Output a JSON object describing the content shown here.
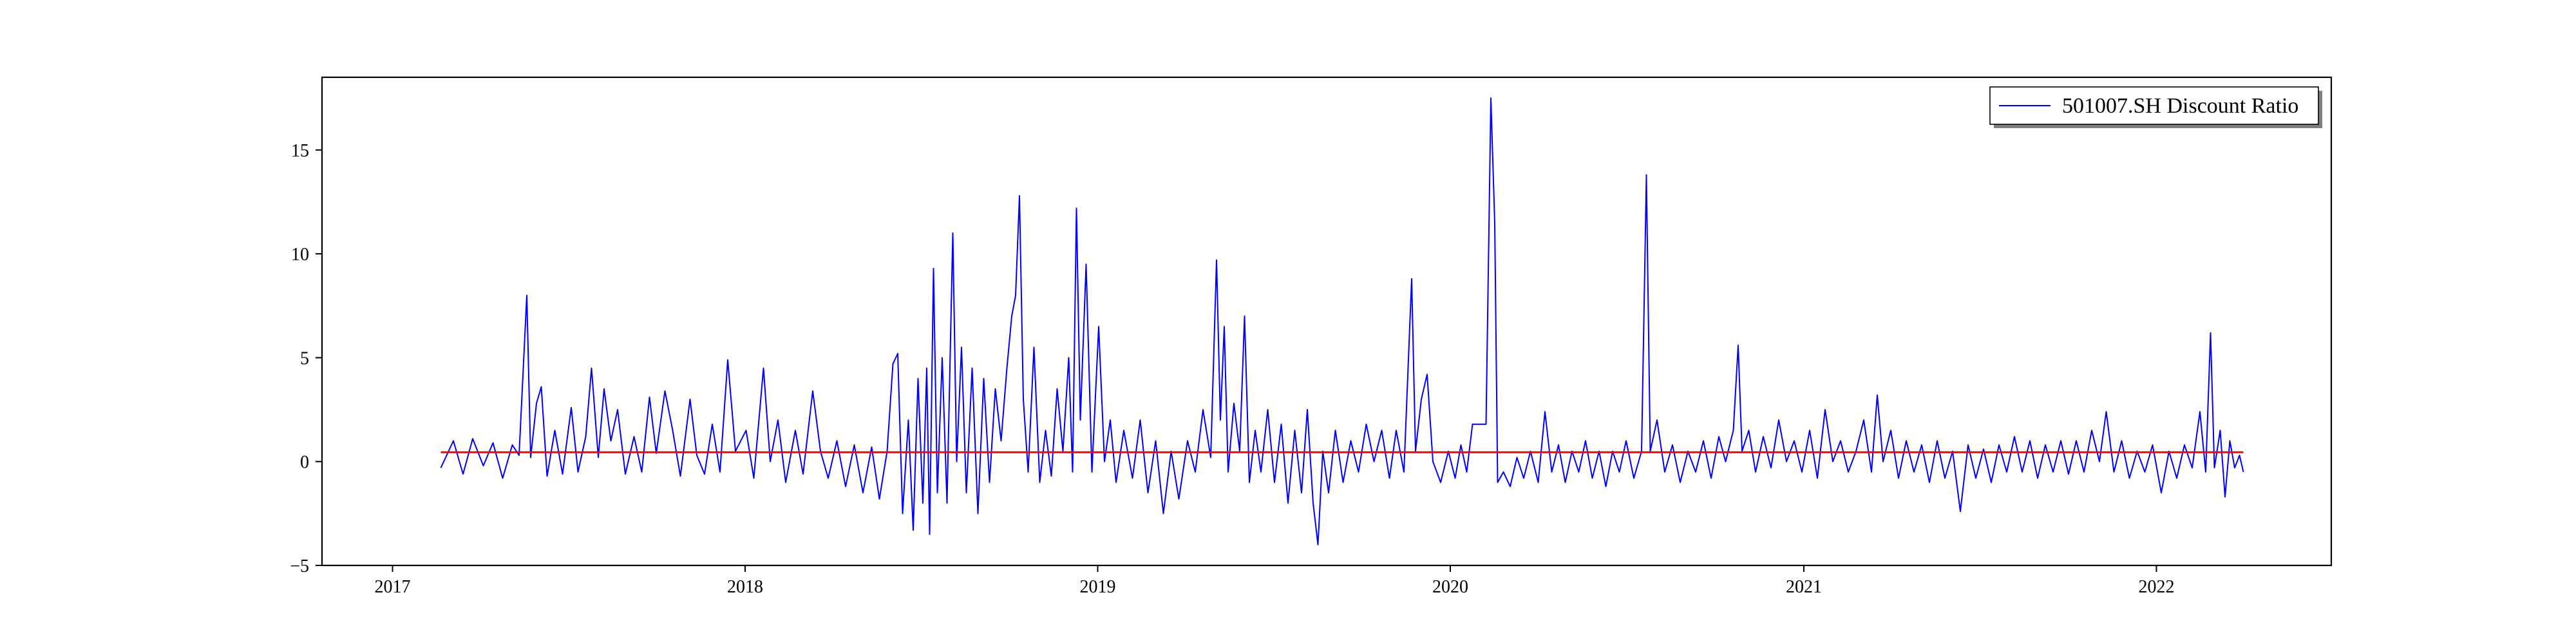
{
  "chart_data": {
    "type": "line",
    "title": "",
    "xlabel": "",
    "ylabel": "",
    "x_axis": {
      "type": "date",
      "range": [
        "2016-10-20",
        "2022-07-01"
      ],
      "ticks": [
        "2017-01-01",
        "2018-01-01",
        "2019-01-01",
        "2020-01-01",
        "2021-01-01",
        "2022-01-01"
      ],
      "tick_labels": [
        "2017",
        "2018",
        "2019",
        "2020",
        "2021",
        "2022"
      ]
    },
    "y_axis": {
      "range": [
        -5,
        18.5
      ],
      "ticks": [
        -5,
        0,
        5,
        10,
        15
      ],
      "tick_labels": [
        "−5",
        "0",
        "5",
        "10",
        "15"
      ]
    },
    "grid": false,
    "legend": {
      "placement": "top-right",
      "entries": [
        "501007.SH Discount Ratio"
      ]
    },
    "series": [
      {
        "name": "501007.SH Discount Ratio",
        "color": "#0000ff",
        "points": [
          [
            "2017-02-20",
            -0.3
          ],
          [
            "2017-03-05",
            1.0
          ],
          [
            "2017-03-15",
            -0.6
          ],
          [
            "2017-03-25",
            1.1
          ],
          [
            "2017-04-05",
            -0.2
          ],
          [
            "2017-04-15",
            0.9
          ],
          [
            "2017-04-25",
            -0.8
          ],
          [
            "2017-05-05",
            0.8
          ],
          [
            "2017-05-12",
            0.3
          ],
          [
            "2017-05-20",
            8.0
          ],
          [
            "2017-05-24",
            0.2
          ],
          [
            "2017-05-30",
            2.8
          ],
          [
            "2017-06-04",
            3.6
          ],
          [
            "2017-06-10",
            -0.7
          ],
          [
            "2017-06-18",
            1.5
          ],
          [
            "2017-06-26",
            -0.6
          ],
          [
            "2017-07-05",
            2.6
          ],
          [
            "2017-07-12",
            -0.5
          ],
          [
            "2017-07-20",
            1.2
          ],
          [
            "2017-07-26",
            4.5
          ],
          [
            "2017-08-02",
            0.2
          ],
          [
            "2017-08-08",
            3.5
          ],
          [
            "2017-08-15",
            1.0
          ],
          [
            "2017-08-22",
            2.5
          ],
          [
            "2017-08-30",
            -0.6
          ],
          [
            "2017-09-08",
            1.2
          ],
          [
            "2017-09-16",
            -0.5
          ],
          [
            "2017-09-24",
            3.1
          ],
          [
            "2017-10-01",
            0.4
          ],
          [
            "2017-10-10",
            3.4
          ],
          [
            "2017-10-18",
            1.5
          ],
          [
            "2017-10-26",
            -0.7
          ],
          [
            "2017-11-05",
            3.0
          ],
          [
            "2017-11-12",
            0.3
          ],
          [
            "2017-11-20",
            -0.6
          ],
          [
            "2017-11-28",
            1.8
          ],
          [
            "2017-12-06",
            -0.5
          ],
          [
            "2017-12-14",
            4.9
          ],
          [
            "2017-12-22",
            0.5
          ],
          [
            "2018-01-02",
            1.5
          ],
          [
            "2018-01-10",
            -0.8
          ],
          [
            "2018-01-20",
            4.5
          ],
          [
            "2018-01-27",
            0.0
          ],
          [
            "2018-02-04",
            2.0
          ],
          [
            "2018-02-12",
            -1.0
          ],
          [
            "2018-02-22",
            1.5
          ],
          [
            "2018-03-02",
            -0.6
          ],
          [
            "2018-03-12",
            3.4
          ],
          [
            "2018-03-20",
            0.5
          ],
          [
            "2018-03-28",
            -0.8
          ],
          [
            "2018-04-06",
            1.0
          ],
          [
            "2018-04-15",
            -1.2
          ],
          [
            "2018-04-24",
            0.8
          ],
          [
            "2018-05-03",
            -1.5
          ],
          [
            "2018-05-12",
            0.7
          ],
          [
            "2018-05-20",
            -1.8
          ],
          [
            "2018-05-28",
            0.5
          ],
          [
            "2018-06-03",
            4.7
          ],
          [
            "2018-06-08",
            5.2
          ],
          [
            "2018-06-13",
            -2.5
          ],
          [
            "2018-06-19",
            2.0
          ],
          [
            "2018-06-24",
            -3.3
          ],
          [
            "2018-06-29",
            4.0
          ],
          [
            "2018-07-04",
            -2.0
          ],
          [
            "2018-07-08",
            4.5
          ],
          [
            "2018-07-11",
            -3.5
          ],
          [
            "2018-07-15",
            9.3
          ],
          [
            "2018-07-19",
            -1.5
          ],
          [
            "2018-07-24",
            5.0
          ],
          [
            "2018-07-29",
            -2.0
          ],
          [
            "2018-08-04",
            11.0
          ],
          [
            "2018-08-08",
            0.0
          ],
          [
            "2018-08-13",
            5.5
          ],
          [
            "2018-08-18",
            -1.5
          ],
          [
            "2018-08-24",
            4.5
          ],
          [
            "2018-08-30",
            -2.5
          ],
          [
            "2018-09-05",
            4.0
          ],
          [
            "2018-09-11",
            -1.0
          ],
          [
            "2018-09-17",
            3.5
          ],
          [
            "2018-09-23",
            1.0
          ],
          [
            "2018-09-29",
            4.5
          ],
          [
            "2018-10-04",
            7.0
          ],
          [
            "2018-10-08",
            8.0
          ],
          [
            "2018-10-12",
            12.8
          ],
          [
            "2018-10-16",
            3.0
          ],
          [
            "2018-10-21",
            -0.5
          ],
          [
            "2018-10-27",
            5.5
          ],
          [
            "2018-11-02",
            -1.0
          ],
          [
            "2018-11-08",
            1.5
          ],
          [
            "2018-11-14",
            -0.7
          ],
          [
            "2018-11-20",
            3.5
          ],
          [
            "2018-11-26",
            0.5
          ],
          [
            "2018-12-02",
            5.0
          ],
          [
            "2018-12-06",
            -0.5
          ],
          [
            "2018-12-10",
            12.2
          ],
          [
            "2018-12-14",
            2.0
          ],
          [
            "2018-12-20",
            9.5
          ],
          [
            "2018-12-26",
            -0.5
          ],
          [
            "2019-01-02",
            6.5
          ],
          [
            "2019-01-08",
            0.0
          ],
          [
            "2019-01-14",
            2.0
          ],
          [
            "2019-01-20",
            -1.0
          ],
          [
            "2019-01-28",
            1.5
          ],
          [
            "2019-02-06",
            -0.8
          ],
          [
            "2019-02-14",
            2.0
          ],
          [
            "2019-02-22",
            -1.5
          ],
          [
            "2019-03-02",
            1.0
          ],
          [
            "2019-03-10",
            -2.5
          ],
          [
            "2019-03-18",
            0.5
          ],
          [
            "2019-03-26",
            -1.8
          ],
          [
            "2019-04-04",
            1.0
          ],
          [
            "2019-04-12",
            -0.5
          ],
          [
            "2019-04-20",
            2.5
          ],
          [
            "2019-04-28",
            0.2
          ],
          [
            "2019-05-04",
            9.7
          ],
          [
            "2019-05-08",
            2.0
          ],
          [
            "2019-05-12",
            6.5
          ],
          [
            "2019-05-16",
            -0.5
          ],
          [
            "2019-05-22",
            2.8
          ],
          [
            "2019-05-28",
            0.5
          ],
          [
            "2019-06-02",
            7.0
          ],
          [
            "2019-06-07",
            -1.0
          ],
          [
            "2019-06-13",
            1.5
          ],
          [
            "2019-06-19",
            -0.5
          ],
          [
            "2019-06-26",
            2.5
          ],
          [
            "2019-07-03",
            -1.0
          ],
          [
            "2019-07-10",
            1.8
          ],
          [
            "2019-07-17",
            -2.0
          ],
          [
            "2019-07-24",
            1.5
          ],
          [
            "2019-07-31",
            -1.5
          ],
          [
            "2019-08-06",
            2.5
          ],
          [
            "2019-08-12",
            -2.0
          ],
          [
            "2019-08-17",
            -4.0
          ],
          [
            "2019-08-22",
            0.5
          ],
          [
            "2019-08-28",
            -1.5
          ],
          [
            "2019-09-04",
            1.5
          ],
          [
            "2019-09-12",
            -1.0
          ],
          [
            "2019-09-20",
            1.0
          ],
          [
            "2019-09-28",
            -0.5
          ],
          [
            "2019-10-06",
            1.8
          ],
          [
            "2019-10-14",
            0.0
          ],
          [
            "2019-10-22",
            1.5
          ],
          [
            "2019-10-30",
            -0.8
          ],
          [
            "2019-11-06",
            1.5
          ],
          [
            "2019-11-14",
            -0.5
          ],
          [
            "2019-11-22",
            8.8
          ],
          [
            "2019-11-26",
            0.5
          ],
          [
            "2019-12-02",
            3.0
          ],
          [
            "2019-12-08",
            4.2
          ],
          [
            "2019-12-14",
            0.0
          ],
          [
            "2019-12-22",
            -1.0
          ],
          [
            "2019-12-30",
            0.5
          ],
          [
            "2020-01-06",
            -0.8
          ],
          [
            "2020-01-12",
            0.8
          ],
          [
            "2020-01-18",
            -0.5
          ],
          [
            "2020-01-24",
            1.8
          ],
          [
            "2020-02-07",
            1.8
          ],
          [
            "2020-02-12",
            17.5
          ],
          [
            "2020-02-16",
            11.5
          ],
          [
            "2020-02-19",
            -1.0
          ],
          [
            "2020-02-25",
            -0.5
          ],
          [
            "2020-03-03",
            -1.2
          ],
          [
            "2020-03-10",
            0.2
          ],
          [
            "2020-03-17",
            -0.8
          ],
          [
            "2020-03-24",
            0.5
          ],
          [
            "2020-04-01",
            -1.0
          ],
          [
            "2020-04-08",
            2.4
          ],
          [
            "2020-04-15",
            -0.5
          ],
          [
            "2020-04-22",
            0.8
          ],
          [
            "2020-04-29",
            -1.0
          ],
          [
            "2020-05-06",
            0.5
          ],
          [
            "2020-05-13",
            -0.5
          ],
          [
            "2020-05-20",
            1.0
          ],
          [
            "2020-05-27",
            -0.8
          ],
          [
            "2020-06-03",
            0.5
          ],
          [
            "2020-06-10",
            -1.2
          ],
          [
            "2020-06-17",
            0.5
          ],
          [
            "2020-06-24",
            -0.5
          ],
          [
            "2020-07-01",
            1.0
          ],
          [
            "2020-07-09",
            -0.8
          ],
          [
            "2020-07-17",
            0.5
          ],
          [
            "2020-07-22",
            13.8
          ],
          [
            "2020-07-26",
            0.5
          ],
          [
            "2020-08-02",
            2.0
          ],
          [
            "2020-08-10",
            -0.5
          ],
          [
            "2020-08-18",
            0.8
          ],
          [
            "2020-08-26",
            -1.0
          ],
          [
            "2020-09-03",
            0.5
          ],
          [
            "2020-09-11",
            -0.5
          ],
          [
            "2020-09-19",
            1.0
          ],
          [
            "2020-09-27",
            -0.8
          ],
          [
            "2020-10-05",
            1.2
          ],
          [
            "2020-10-12",
            0.0
          ],
          [
            "2020-10-20",
            1.5
          ],
          [
            "2020-10-25",
            5.6
          ],
          [
            "2020-10-29",
            0.5
          ],
          [
            "2020-11-05",
            1.5
          ],
          [
            "2020-11-12",
            -0.5
          ],
          [
            "2020-11-20",
            1.2
          ],
          [
            "2020-11-28",
            -0.3
          ],
          [
            "2020-12-06",
            2.0
          ],
          [
            "2020-12-14",
            0.0
          ],
          [
            "2020-12-22",
            1.0
          ],
          [
            "2020-12-30",
            -0.5
          ],
          [
            "2021-01-07",
            1.5
          ],
          [
            "2021-01-15",
            -0.8
          ],
          [
            "2021-01-23",
            2.5
          ],
          [
            "2021-01-31",
            0.0
          ],
          [
            "2021-02-08",
            1.0
          ],
          [
            "2021-02-16",
            -0.5
          ],
          [
            "2021-02-24",
            0.5
          ],
          [
            "2021-03-04",
            2.0
          ],
          [
            "2021-03-12",
            -0.5
          ],
          [
            "2021-03-18",
            3.2
          ],
          [
            "2021-03-24",
            0.0
          ],
          [
            "2021-04-01",
            1.5
          ],
          [
            "2021-04-09",
            -0.8
          ],
          [
            "2021-04-17",
            1.0
          ],
          [
            "2021-04-25",
            -0.5
          ],
          [
            "2021-05-03",
            0.8
          ],
          [
            "2021-05-11",
            -1.0
          ],
          [
            "2021-05-19",
            1.0
          ],
          [
            "2021-05-27",
            -0.8
          ],
          [
            "2021-06-04",
            0.5
          ],
          [
            "2021-06-12",
            -2.4
          ],
          [
            "2021-06-20",
            0.8
          ],
          [
            "2021-06-28",
            -0.8
          ],
          [
            "2021-07-06",
            0.6
          ],
          [
            "2021-07-14",
            -1.0
          ],
          [
            "2021-07-22",
            0.8
          ],
          [
            "2021-07-30",
            -0.5
          ],
          [
            "2021-08-07",
            1.2
          ],
          [
            "2021-08-15",
            -0.5
          ],
          [
            "2021-08-23",
            1.0
          ],
          [
            "2021-08-31",
            -0.8
          ],
          [
            "2021-09-08",
            0.8
          ],
          [
            "2021-09-16",
            -0.5
          ],
          [
            "2021-09-24",
            1.0
          ],
          [
            "2021-10-02",
            -0.6
          ],
          [
            "2021-10-10",
            1.0
          ],
          [
            "2021-10-18",
            -0.5
          ],
          [
            "2021-10-26",
            1.5
          ],
          [
            "2021-11-03",
            0.0
          ],
          [
            "2021-11-10",
            2.4
          ],
          [
            "2021-11-18",
            -0.5
          ],
          [
            "2021-11-26",
            1.0
          ],
          [
            "2021-12-04",
            -0.8
          ],
          [
            "2021-12-12",
            0.5
          ],
          [
            "2021-12-20",
            -0.5
          ],
          [
            "2021-12-28",
            0.8
          ],
          [
            "2022-01-06",
            -1.5
          ],
          [
            "2022-01-14",
            0.5
          ],
          [
            "2022-01-22",
            -0.8
          ],
          [
            "2022-01-30",
            0.8
          ],
          [
            "2022-02-07",
            -0.3
          ],
          [
            "2022-02-15",
            2.4
          ],
          [
            "2022-02-21",
            -0.5
          ],
          [
            "2022-02-26",
            6.2
          ],
          [
            "2022-03-02",
            -0.3
          ],
          [
            "2022-03-08",
            1.5
          ],
          [
            "2022-03-13",
            -1.7
          ],
          [
            "2022-03-18",
            1.0
          ],
          [
            "2022-03-23",
            -0.3
          ],
          [
            "2022-03-28",
            0.3
          ],
          [
            "2022-04-01",
            -0.5
          ]
        ]
      },
      {
        "name": "",
        "color": "#ff0000",
        "points": [
          [
            "2017-02-20",
            0.45
          ],
          [
            "2022-04-01",
            0.45
          ]
        ]
      }
    ]
  }
}
